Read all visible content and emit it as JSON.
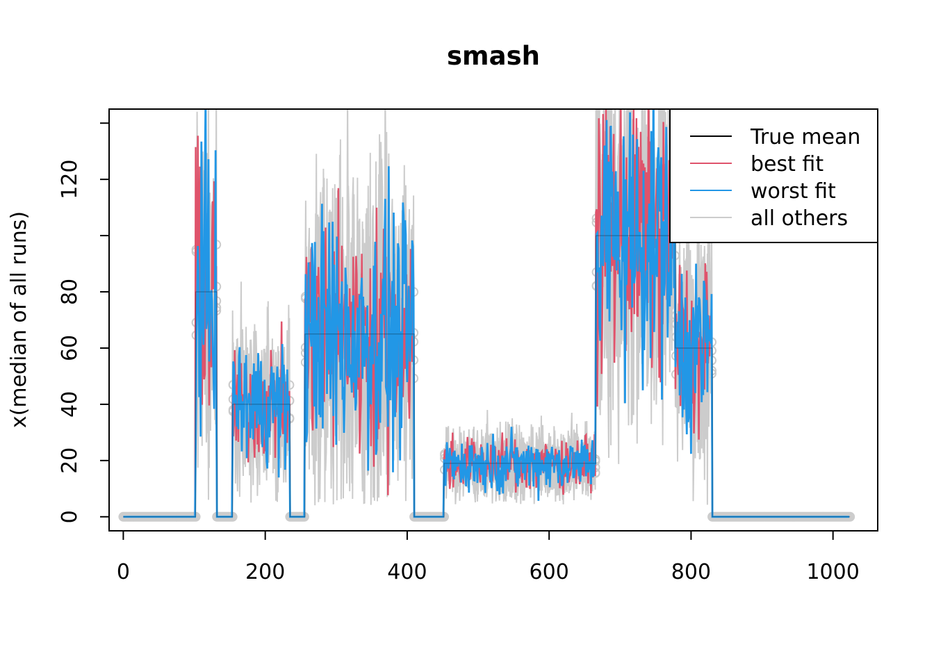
{
  "chart_data": {
    "type": "line",
    "title": "smash",
    "xlabel": "",
    "ylabel": "x(median of all runs)",
    "xlim": [
      -20,
      1063
    ],
    "ylim": [
      -5,
      145
    ],
    "x_ticks": [
      0,
      200,
      400,
      600,
      800,
      1000
    ],
    "y_ticks": [
      0,
      20,
      40,
      60,
      80,
      100,
      120,
      140
    ],
    "y_tick_labels": [
      "0",
      "20",
      "40",
      "60",
      "80",
      "",
      "120",
      ""
    ],
    "legend_position": "top-right",
    "colors": {
      "true_mean": "#000000",
      "best_fit": "#df536b",
      "worst_fit": "#2297e6",
      "all_others": "#cccccc"
    },
    "series": [
      {
        "name": "True mean",
        "color": "#000000"
      },
      {
        "name": "best fit",
        "color": "#df536b"
      },
      {
        "name": "worst fit",
        "color": "#2297e6"
      },
      {
        "name": "all others",
        "color": "#cccccc"
      }
    ],
    "segments": [
      {
        "x_start": 0,
        "x_end": 102,
        "level": 0,
        "spread": 0
      },
      {
        "x_start": 102,
        "x_end": 132,
        "level": 80,
        "spread": 45
      },
      {
        "x_start": 132,
        "x_end": 154,
        "level": 0,
        "spread": 0
      },
      {
        "x_start": 154,
        "x_end": 235,
        "level": 40,
        "spread": 20
      },
      {
        "x_start": 235,
        "x_end": 256,
        "level": 0,
        "spread": 0
      },
      {
        "x_start": 256,
        "x_end": 410,
        "level": 65,
        "spread": 40
      },
      {
        "x_start": 410,
        "x_end": 452,
        "level": 0,
        "spread": 0
      },
      {
        "x_start": 452,
        "x_end": 666,
        "level": 19,
        "spread": 9
      },
      {
        "x_start": 666,
        "x_end": 778,
        "level": 100,
        "spread": 45
      },
      {
        "x_start": 778,
        "x_end": 830,
        "level": 60,
        "spread": 30
      },
      {
        "x_start": 830,
        "x_end": 1024,
        "level": 0,
        "spread": 0
      }
    ],
    "n_points": 1024
  }
}
